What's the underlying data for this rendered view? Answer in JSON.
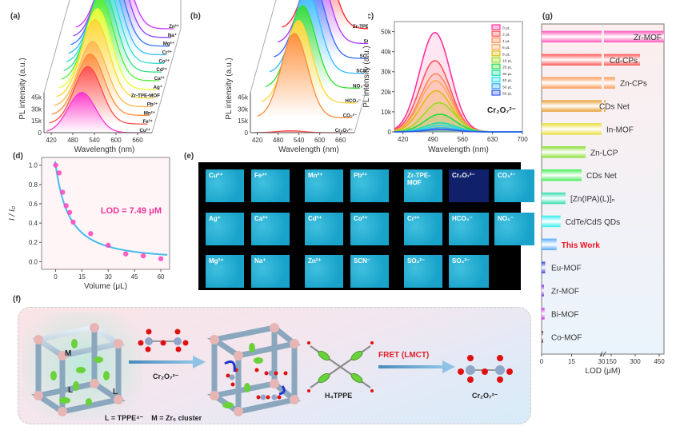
{
  "panels": {
    "a": {
      "label": "(a)"
    },
    "b": {
      "label": "(b)"
    },
    "c": {
      "label": "(c)"
    },
    "d": {
      "label": "(d)"
    },
    "e": {
      "label": "(e)"
    },
    "f": {
      "label": "(f)"
    },
    "g": {
      "label": "(g)"
    }
  },
  "chart_data": [
    {
      "id": "a",
      "type": "line",
      "title": "",
      "xlabel": "Wavelength (nm)",
      "ylabel": "PL intensity (a.u.)",
      "xticks": [
        "420",
        "480",
        "540",
        "600",
        "660"
      ],
      "yticks": [
        "0",
        "15k",
        "30k",
        "45k"
      ],
      "xlim": [
        400,
        700
      ],
      "ylim": [
        0,
        50000
      ],
      "series": [
        {
          "name": "Cu²⁺",
          "peak": 505,
          "intensity": 21000,
          "color": "#ff33cc"
        },
        {
          "name": "Fe³⁺",
          "peak": 515,
          "intensity": 30000,
          "color": "#ff4d4d"
        },
        {
          "name": "Mn²⁺",
          "peak": 515,
          "intensity": 32000,
          "color": "#ff8c3a"
        },
        {
          "name": "Pb²⁺",
          "peak": 515,
          "intensity": 34000,
          "color": "#ffb84d"
        },
        {
          "name": "Zr-TPE-MOF",
          "peak": 515,
          "intensity": 41000,
          "color": "#ffd633"
        },
        {
          "name": "Ag⁺",
          "peak": 515,
          "intensity": 42000,
          "color": "#e6ff33"
        },
        {
          "name": "Ca²⁺",
          "peak": 515,
          "intensity": 43000,
          "color": "#55ee33"
        },
        {
          "name": "Cd²⁺",
          "peak": 515,
          "intensity": 43000,
          "color": "#33dd88"
        },
        {
          "name": "Co²⁺",
          "peak": 515,
          "intensity": 43000,
          "color": "#33ddcc"
        },
        {
          "name": "Cr³⁺",
          "peak": 515,
          "intensity": 43000,
          "color": "#33bbff"
        },
        {
          "name": "Mg²⁺",
          "peak": 515,
          "intensity": 43000,
          "color": "#3377ff"
        },
        {
          "name": "Na⁺",
          "peak": 515,
          "intensity": 44000,
          "color": "#8844ff"
        },
        {
          "name": "Zn²⁺",
          "peak": 515,
          "intensity": 45000,
          "color": "#cc33ff"
        }
      ]
    },
    {
      "id": "b",
      "type": "line",
      "title": "",
      "xlabel": "Wavelength (nm)",
      "ylabel": "PL intensity (a.u.)",
      "xticks": [
        "420",
        "480",
        "540",
        "600",
        "660"
      ],
      "yticks": [
        "0",
        "15k",
        "30k",
        "45k"
      ],
      "xlim": [
        400,
        700
      ],
      "ylim": [
        0,
        50000
      ],
      "series": [
        {
          "name": "Cr₂O₇²⁻",
          "peak": 515,
          "intensity": 1000,
          "color": "#ff4d4d"
        },
        {
          "name": "CO₃²⁻",
          "peak": 515,
          "intensity": 44000,
          "color": "#ff8c3a"
        },
        {
          "name": "HCO₃⁻",
          "peak": 515,
          "intensity": 43000,
          "color": "#ffd633"
        },
        {
          "name": "NO₃⁻",
          "peak": 515,
          "intensity": 43000,
          "color": "#33dd33"
        },
        {
          "name": "SCN⁻",
          "peak": 515,
          "intensity": 43000,
          "color": "#33bbff"
        },
        {
          "name": "SO₃²⁻",
          "peak": 515,
          "intensity": 43000,
          "color": "#3366ff"
        },
        {
          "name": "SO₄²⁻",
          "peak": 515,
          "intensity": 43000,
          "color": "#aa33ff"
        },
        {
          "name": "Zr-TPE-MOF",
          "peak": 515,
          "intensity": 44000,
          "color": "#ff2222"
        }
      ]
    },
    {
      "id": "c",
      "type": "area",
      "title": "",
      "annotation": "Cr₂O₇²⁻",
      "xlabel": "Wavelength (nm)",
      "ylabel": "PL intensity (a.u.)",
      "xticks": [
        "420",
        "490",
        "560",
        "630",
        "700"
      ],
      "yticks": [
        "0",
        "10k",
        "20k",
        "30k",
        "40k",
        "50k"
      ],
      "xlim": [
        400,
        700
      ],
      "ylim": [
        0,
        55000
      ],
      "legend": "top-right",
      "series": [
        {
          "name": "0 μL",
          "peak": 495,
          "intensity": 49500,
          "color": "#ff3399"
        },
        {
          "name": "2 μL",
          "peak": 495,
          "intensity": 35500,
          "color": "#ff5555"
        },
        {
          "name": "4 μL",
          "peak": 497,
          "intensity": 29000,
          "color": "#ff8855"
        },
        {
          "name": "6 μL",
          "peak": 497,
          "intensity": 25500,
          "color": "#ffaa55"
        },
        {
          "name": "8 μL",
          "peak": 498,
          "intensity": 20500,
          "color": "#ddbb11"
        },
        {
          "name": "10 μL",
          "peak": 505,
          "intensity": 14500,
          "color": "#99dd22"
        },
        {
          "name": "20 μL",
          "peak": 507,
          "intensity": 8800,
          "color": "#22dd44"
        },
        {
          "name": "30 μL",
          "peak": 508,
          "intensity": 4500,
          "color": "#22ddaa"
        },
        {
          "name": "40 μL",
          "peak": 510,
          "intensity": 3200,
          "color": "#22ddee"
        },
        {
          "name": "50 μL",
          "peak": 510,
          "intensity": 2000,
          "color": "#33aaee"
        },
        {
          "name": "60 μL",
          "peak": 510,
          "intensity": 1200,
          "color": "#3355ee"
        }
      ]
    },
    {
      "id": "d",
      "type": "scatter",
      "title": "",
      "annotation": "LOD = 7.49 μM",
      "xlabel": "Volume (μL)",
      "ylabel": "I / I₀",
      "xticks": [
        "0",
        "15",
        "30",
        "45",
        "60"
      ],
      "yticks": [
        "0.0",
        "0.2",
        "0.4",
        "0.6",
        "0.8",
        "1.0"
      ],
      "xlim": [
        -8,
        65
      ],
      "ylim": [
        -0.08,
        1.08
      ],
      "x": [
        0,
        2,
        4,
        6,
        8,
        10,
        20,
        30,
        40,
        50,
        60
      ],
      "y": [
        1.0,
        0.92,
        0.72,
        0.58,
        0.51,
        0.41,
        0.29,
        0.17,
        0.08,
        0.06,
        0.03
      ],
      "fit_color": "#44bbee",
      "point_color": "#ff44bb"
    },
    {
      "id": "g",
      "type": "bar",
      "orientation": "horizontal",
      "title": "",
      "xlabel": "LOD (μM)",
      "xticks_low": [
        "0",
        "15",
        "30"
      ],
      "xticks_high": [
        "150",
        "300",
        "450"
      ],
      "axis_break": [
        30,
        100
      ],
      "categories": [
        "Zr-MOF",
        "Cd-CPs",
        "Zn-CPs",
        "CDs Net",
        "In-MOF",
        "Zn-LCP",
        "CDs Net",
        "[Zn(IPA)(L)]ₙ",
        "CdTe/CdS QDs",
        "This Work",
        "Eu-MOF",
        "Zr-MOF",
        "Bi-MOF",
        "Co-MOF"
      ],
      "values": [
        480,
        330,
        175,
        45,
        30,
        22,
        20,
        12,
        9.5,
        7.49,
        1.8,
        1.2,
        1.5,
        0.6
      ],
      "colors": [
        "#ff55bb",
        "#ff5555",
        "#ff9955",
        "#e6a033",
        "#e6dd33",
        "#88dd33",
        "#44ee55",
        "#33ddaa",
        "#33eeee",
        "#55aaff",
        "#3344dd",
        "#7733dd",
        "#cc33ee",
        "#663333"
      ],
      "highlight": "This Work",
      "highlight_color": "#ee1122"
    }
  ],
  "panel_e": {
    "tiles": [
      {
        "label": "Cu²⁺",
        "row": 0,
        "col": 0
      },
      {
        "label": "Fe³⁺",
        "row": 0,
        "col": 1
      },
      {
        "label": "Mn²⁺",
        "row": 0,
        "col": 2
      },
      {
        "label": "Pb²⁺",
        "row": 0,
        "col": 3
      },
      {
        "label": "Zr-TPE-MOF",
        "row": 0,
        "col": 4
      },
      {
        "label": "Cr₂O₇²⁻",
        "row": 0,
        "col": 5,
        "quenched": true
      },
      {
        "label": "CO₃²⁻",
        "row": 0,
        "col": 6
      },
      {
        "label": "Ag⁺",
        "row": 1,
        "col": 0
      },
      {
        "label": "Ca²⁺",
        "row": 1,
        "col": 1
      },
      {
        "label": "Cd²⁺",
        "row": 1,
        "col": 2
      },
      {
        "label": "Co²⁺",
        "row": 1,
        "col": 3
      },
      {
        "label": "Cr³⁺",
        "row": 1,
        "col": 4
      },
      {
        "label": "HCO₃⁻",
        "row": 1,
        "col": 5
      },
      {
        "label": "NO₃⁻",
        "row": 1,
        "col": 6
      },
      {
        "label": "Mg²⁺",
        "row": 2,
        "col": 0
      },
      {
        "label": "Na⁺",
        "row": 2,
        "col": 1
      },
      {
        "label": "Zn²⁺",
        "row": 2,
        "col": 2
      },
      {
        "label": "SCN⁻",
        "row": 2,
        "col": 3
      },
      {
        "label": "SO₃²⁻",
        "row": 2,
        "col": 4
      },
      {
        "label": "SO₄²⁻",
        "row": 2,
        "col": 5
      }
    ]
  },
  "panel_f": {
    "arrow1_label": "Cr₂O₇²⁻",
    "legend_text": "L = TPPE⁴⁻    M = Zr₆ cluster",
    "cube_label_M": "M",
    "cube_label_L": "L",
    "linker_label": "H₄TPPE",
    "arrow2_label": "FRET (LMCT)",
    "product_label": "Cr₂O₇²⁻"
  }
}
